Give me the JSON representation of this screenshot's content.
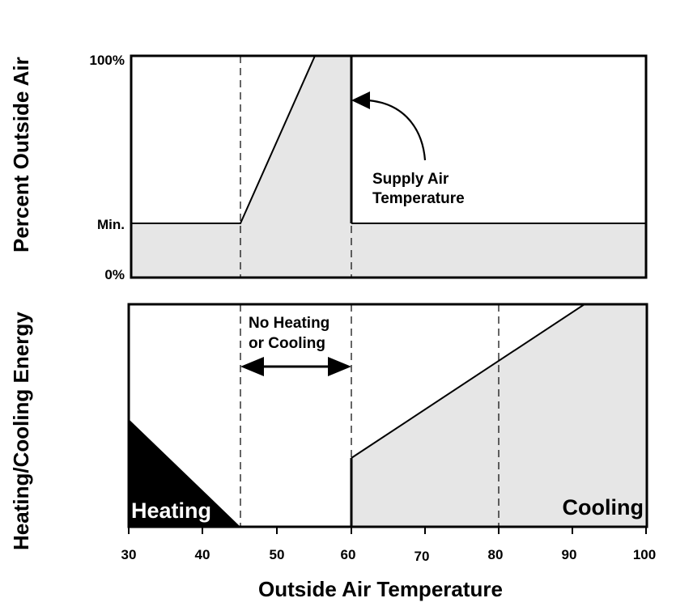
{
  "chart_data": [
    {
      "type": "area",
      "panel": "top",
      "title": "",
      "ylabel": "Percent Outside Air",
      "y_ticks": [
        "100%",
        "Min.",
        "0%"
      ],
      "x_range": [
        30,
        100
      ],
      "series": [
        {
          "x": [
            30,
            45,
            55.5,
            60,
            60,
            100
          ],
          "values": [
            "Min.",
            "Min.",
            "100%",
            "100%",
            "Min.",
            "Min."
          ]
        }
      ],
      "fill": "#e6e6e6",
      "annotations": [
        {
          "text": [
            "Supply Air",
            "Temperature"
          ],
          "points_to": {
            "x": 60,
            "y": "near 100%"
          }
        }
      ],
      "reference_lines_x": [
        45,
        60
      ]
    },
    {
      "type": "area",
      "panel": "bottom",
      "ylabel": "Heating/Cooling Energy",
      "xlabel": "Outside Air Temperature",
      "x_ticks": [
        30,
        40,
        50,
        60,
        70,
        80,
        90,
        100
      ],
      "x_range": [
        30,
        100
      ],
      "reference_lines_x": [
        45,
        60,
        80
      ],
      "series": [
        {
          "name": "Heating",
          "x": [
            30,
            45
          ],
          "values": [
            0.48,
            0.0
          ],
          "fill": "#000000"
        },
        {
          "name": "Cooling",
          "x": [
            60,
            60,
            92,
            100
          ],
          "values": [
            0.0,
            0.31,
            1.0,
            1.0
          ],
          "fill": "#e6e6e6"
        }
      ],
      "annotations": [
        {
          "text": [
            "No Heating",
            "or Cooling"
          ],
          "span_x": [
            45,
            60
          ]
        }
      ]
    }
  ],
  "labels": {
    "ylabel_top": "Percent Outside Air",
    "ylabel_bottom": "Heating/Cooling Energy",
    "xlabel": "Outside Air Temperature",
    "tick_100": "100%",
    "tick_min": "Min.",
    "tick_0": "0%",
    "supply_1": "Supply Air",
    "supply_2": "Temperature",
    "noheat_1": "No Heating",
    "noheat_2": "or Cooling",
    "heating": "Heating",
    "cooling": "Cooling"
  }
}
